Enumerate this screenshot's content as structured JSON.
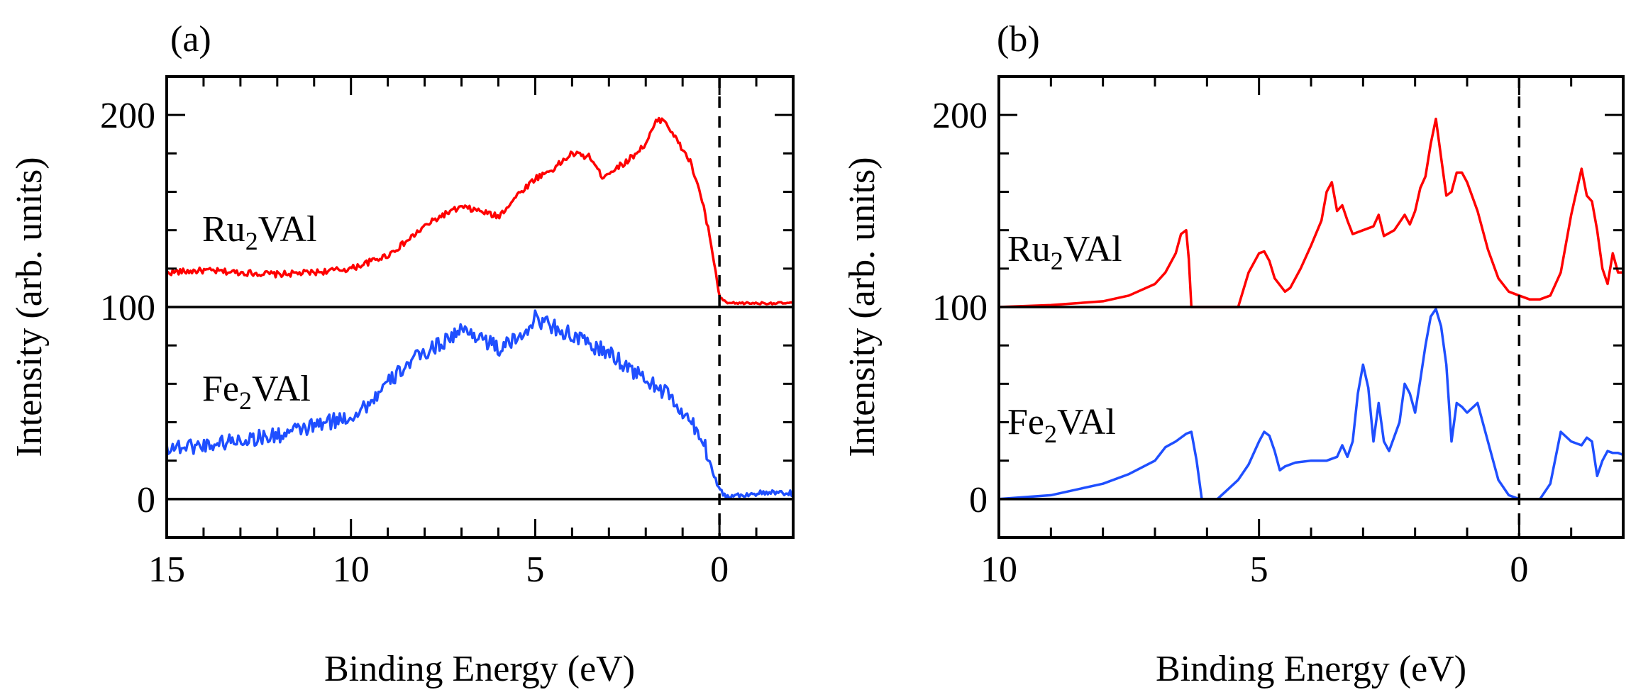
{
  "chart_data": [
    {
      "type": "line",
      "panel_label": "(a)",
      "xlabel": "Binding Energy (eV)",
      "ylabel": "Intensity (arb. units)",
      "xlim": [
        15,
        -2
      ],
      "ylim": [
        -20,
        220
      ],
      "x_ticks": [
        15,
        10,
        5,
        0
      ],
      "y_ticks": [
        0,
        100,
        200
      ],
      "fermi_level": 0,
      "baselines": [
        0,
        100
      ],
      "series": [
        {
          "name": "Ru2VAl",
          "label_main": "Ru",
          "label_sub": "2",
          "label_rest": "VAl",
          "color": "#ff0000",
          "x": [
            15,
            14,
            13,
            12,
            11,
            10,
            9,
            8.5,
            8,
            7.5,
            7,
            6.5,
            6,
            5.5,
            5,
            4.5,
            4,
            3.5,
            3.2,
            3,
            2.5,
            2,
            1.7,
            1.5,
            1.2,
            1.0,
            0.8,
            0.5,
            0.3,
            0.1,
            0,
            -0.2,
            -0.5,
            -1,
            -1.5,
            -2
          ],
          "y": [
            118,
            119,
            118,
            117,
            118,
            120,
            127,
            134,
            142,
            148,
            152,
            150,
            147,
            158,
            167,
            172,
            180,
            178,
            168,
            170,
            176,
            185,
            197,
            198,
            188,
            182,
            176,
            158,
            140,
            118,
            105,
            102,
            102,
            102,
            102,
            102
          ]
        },
        {
          "name": "Fe2VAl",
          "label_main": "Fe",
          "label_sub": "2",
          "label_rest": "VAl",
          "color": "#1f4fff",
          "x": [
            15,
            14,
            13,
            12,
            11,
            10,
            9.5,
            9,
            8.5,
            8,
            7.5,
            7,
            6.5,
            6,
            5.5,
            5,
            4.5,
            4,
            3.5,
            3,
            2.5,
            2,
            1.5,
            1.2,
            1.0,
            0.8,
            0.5,
            0.3,
            0.1,
            0,
            -0.2,
            -0.5,
            -1,
            -1.5,
            -2
          ],
          "y": [
            27,
            28,
            31,
            33,
            38,
            43,
            50,
            60,
            70,
            76,
            82,
            88,
            85,
            78,
            83,
            94,
            90,
            85,
            80,
            76,
            69,
            62,
            56,
            50,
            44,
            40,
            33,
            22,
            10,
            5,
            1,
            2,
            3,
            3,
            3
          ]
        }
      ]
    },
    {
      "type": "line",
      "panel_label": "(b)",
      "xlabel": "Binding Energy (eV)",
      "ylabel": "Intensity (arb. units)",
      "xlim": [
        10,
        -2
      ],
      "ylim": [
        -20,
        220
      ],
      "x_ticks": [
        10,
        5,
        0
      ],
      "y_ticks": [
        0,
        100,
        200
      ],
      "fermi_level": 0,
      "baselines": [
        0,
        100
      ],
      "series": [
        {
          "name": "Ru2VAl",
          "label_main": "Ru",
          "label_sub": "2",
          "label_rest": "VAl",
          "color": "#ff0000",
          "x": [
            10,
            9,
            8,
            7.5,
            7,
            6.8,
            6.6,
            6.5,
            6.4,
            6.35,
            6.3,
            6.2,
            6.0,
            5.8,
            5.6,
            5.4,
            5.2,
            5.0,
            4.9,
            4.8,
            4.7,
            4.5,
            4.4,
            4.2,
            4.0,
            3.8,
            3.7,
            3.6,
            3.5,
            3.4,
            3.3,
            3.2,
            3.0,
            2.8,
            2.7,
            2.6,
            2.4,
            2.2,
            2.1,
            2.0,
            1.9,
            1.8,
            1.7,
            1.6,
            1.5,
            1.4,
            1.3,
            1.2,
            1.1,
            1.0,
            0.8,
            0.6,
            0.4,
            0.2,
            0,
            -0.2,
            -0.4,
            -0.6,
            -0.8,
            -1.0,
            -1.2,
            -1.3,
            -1.4,
            -1.5,
            -1.6,
            -1.7,
            -1.8,
            -1.9,
            -2.0
          ],
          "y": [
            100,
            101,
            103,
            106,
            112,
            118,
            128,
            138,
            140,
            125,
            100,
            100,
            100,
            100,
            100,
            100,
            118,
            128,
            129,
            124,
            115,
            108,
            110,
            120,
            132,
            145,
            160,
            165,
            150,
            153,
            145,
            138,
            140,
            142,
            148,
            137,
            140,
            148,
            143,
            150,
            162,
            168,
            185,
            198,
            178,
            158,
            160,
            170,
            170,
            165,
            150,
            130,
            115,
            108,
            106,
            104,
            104,
            106,
            118,
            148,
            172,
            158,
            155,
            140,
            120,
            112,
            128,
            118,
            118
          ]
        },
        {
          "name": "Fe2VAl",
          "label_main": "Fe",
          "label_sub": "2",
          "label_rest": "VAl",
          "color": "#1f4fff",
          "x": [
            10,
            9,
            8,
            7.5,
            7,
            6.8,
            6.6,
            6.4,
            6.3,
            6.2,
            6.1,
            6.0,
            5.8,
            5.6,
            5.4,
            5.2,
            5.0,
            4.9,
            4.8,
            4.7,
            4.6,
            4.5,
            4.3,
            4.0,
            3.7,
            3.5,
            3.4,
            3.3,
            3.2,
            3.1,
            3.0,
            2.9,
            2.8,
            2.7,
            2.6,
            2.5,
            2.3,
            2.2,
            2.1,
            2.0,
            1.9,
            1.8,
            1.7,
            1.6,
            1.5,
            1.4,
            1.3,
            1.2,
            1.1,
            1.0,
            0.8,
            0.6,
            0.4,
            0.2,
            0,
            -0.2,
            -0.4,
            -0.6,
            -0.8,
            -1.0,
            -1.2,
            -1.3,
            -1.4,
            -1.5,
            -1.6,
            -1.7,
            -1.8,
            -1.9,
            -2.0
          ],
          "y": [
            0,
            2,
            8,
            13,
            20,
            27,
            30,
            34,
            35,
            20,
            0,
            0,
            0,
            5,
            10,
            18,
            30,
            35,
            33,
            25,
            15,
            17,
            19,
            20,
            20,
            22,
            28,
            22,
            30,
            55,
            70,
            58,
            30,
            50,
            30,
            25,
            40,
            60,
            55,
            45,
            62,
            80,
            95,
            99,
            90,
            70,
            30,
            50,
            48,
            45,
            50,
            30,
            10,
            2,
            0,
            0,
            0,
            8,
            35,
            30,
            28,
            32,
            30,
            12,
            20,
            25,
            24,
            24,
            23
          ]
        }
      ]
    }
  ]
}
